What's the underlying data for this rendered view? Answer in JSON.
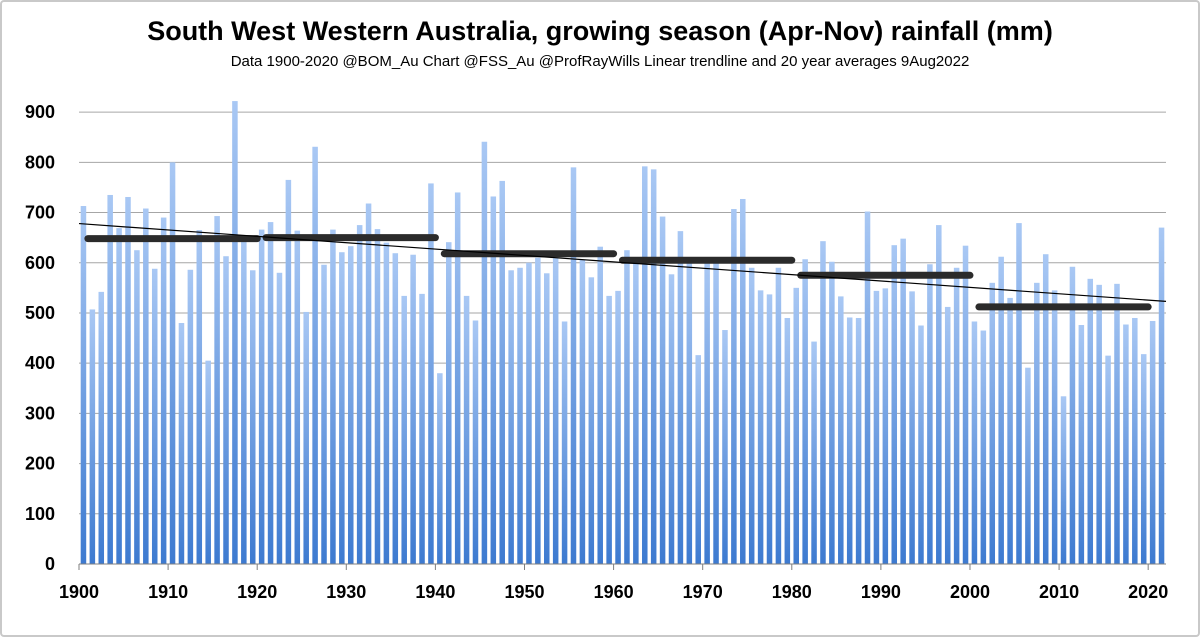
{
  "chart_data": {
    "type": "bar",
    "title": "South West Western Australia, growing season (Apr-Nov) rainfall (mm)",
    "subtitle": "Data 1900-2020 @BOM_Au   Chart @FSS_Au @ProfRayWills Linear trendline and 20 year averages  9Aug2022",
    "xlabel": "",
    "ylabel": "",
    "ylim": [
      0,
      960
    ],
    "yticks": [
      0,
      100,
      200,
      300,
      400,
      500,
      600,
      700,
      800,
      900
    ],
    "xticks": [
      1900,
      1910,
      1920,
      1930,
      1940,
      1950,
      1960,
      1970,
      1980,
      1990,
      2000,
      2010,
      2020
    ],
    "grid": true,
    "bar_color_top": "#a9c8f4",
    "bar_color_bottom": "#3d7ad0",
    "series": [
      {
        "name": "Growing season rainfall (mm)",
        "x": [
          1900,
          1901,
          1902,
          1903,
          1904,
          1905,
          1906,
          1907,
          1908,
          1909,
          1910,
          1911,
          1912,
          1913,
          1914,
          1915,
          1916,
          1917,
          1918,
          1919,
          1920,
          1921,
          1922,
          1923,
          1924,
          1925,
          1926,
          1927,
          1928,
          1929,
          1930,
          1931,
          1932,
          1933,
          1934,
          1935,
          1936,
          1937,
          1938,
          1939,
          1940,
          1941,
          1942,
          1943,
          1944,
          1945,
          1946,
          1947,
          1948,
          1949,
          1950,
          1951,
          1952,
          1953,
          1954,
          1955,
          1956,
          1957,
          1958,
          1959,
          1960,
          1961,
          1962,
          1963,
          1964,
          1965,
          1966,
          1967,
          1968,
          1969,
          1970,
          1971,
          1972,
          1973,
          1974,
          1975,
          1976,
          1977,
          1978,
          1979,
          1980,
          1981,
          1982,
          1983,
          1984,
          1985,
          1986,
          1987,
          1988,
          1989,
          1990,
          1991,
          1992,
          1993,
          1994,
          1995,
          1996,
          1997,
          1998,
          1999,
          2000,
          2001,
          2002,
          2003,
          2004,
          2005,
          2006,
          2007,
          2008,
          2009,
          2010,
          2011,
          2012,
          2013,
          2014,
          2015,
          2016,
          2017,
          2018,
          2019,
          2020,
          2021
        ],
        "values": [
          713,
          507,
          542,
          735,
          669,
          731,
          625,
          708,
          588,
          690,
          800,
          480,
          586,
          665,
          405,
          693,
          613,
          922,
          642,
          585,
          666,
          681,
          580,
          765,
          664,
          502,
          831,
          596,
          666,
          621,
          633,
          675,
          718,
          667,
          640,
          619,
          534,
          616,
          538,
          758,
          380,
          641,
          740,
          534,
          485,
          841,
          732,
          763,
          585,
          590,
          600,
          610,
          579,
          609,
          483,
          790,
          606,
          571,
          632,
          534,
          544,
          625,
          598,
          792,
          786,
          692,
          577,
          663,
          600,
          416,
          601,
          600,
          466,
          707,
          727,
          590,
          545,
          537,
          590,
          490,
          550,
          607,
          443,
          643,
          602,
          533,
          491,
          490,
          702,
          544,
          549,
          635,
          648,
          543,
          475,
          597,
          675,
          512,
          590,
          634,
          483,
          465,
          560,
          612,
          530,
          679,
          391,
          560,
          617,
          545,
          334,
          592,
          476,
          568,
          556,
          415,
          558,
          477,
          490,
          418,
          484,
          670
        ]
      }
    ],
    "trendline": {
      "name": "Linear trendline",
      "x": [
        1900,
        2022
      ],
      "y": [
        678,
        523
      ]
    },
    "averages": [
      {
        "name": "20 year average 1901-1920",
        "x": [
          1901,
          1920
        ],
        "y": 648
      },
      {
        "name": "20 year average 1921-1940",
        "x": [
          1921,
          1940
        ],
        "y": 650
      },
      {
        "name": "20 year average 1941-1960",
        "x": [
          1941,
          1960
        ],
        "y": 618
      },
      {
        "name": "20 year average 1961-1980",
        "x": [
          1961,
          1980
        ],
        "y": 605
      },
      {
        "name": "20 year average 1981-2000",
        "x": [
          1981,
          2000
        ],
        "y": 575
      },
      {
        "name": "20 year average 2001-2020",
        "x": [
          2001,
          2020
        ],
        "y": 512
      }
    ]
  }
}
